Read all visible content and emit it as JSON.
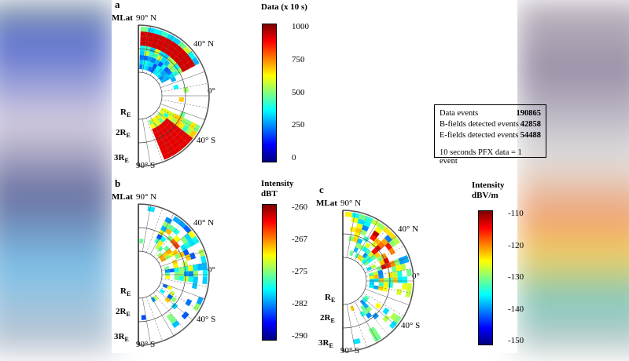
{
  "panels": [
    {
      "letter": "a",
      "mlat": "MLat",
      "n90": "90° N",
      "n40": "40° N",
      "eq": "0°",
      "s40": "40° S",
      "s90": "90° S",
      "re1": "R",
      "re2": "2R",
      "re3": "3R",
      "sub": "E",
      "colorbar": {
        "title": "Data (x 10 s)",
        "ticks": [
          "1000",
          "750",
          "500",
          "250",
          "0"
        ]
      }
    },
    {
      "letter": "b",
      "mlat": "MLat",
      "n90": "90° N",
      "n40": "40° N",
      "eq": "0°",
      "s40": "40° S",
      "s90": "90° S",
      "re1": "R",
      "re2": "2R",
      "re3": "3R",
      "sub": "E",
      "colorbar": {
        "title": "Intensity",
        "title2": "dBT",
        "ticks": [
          "-260",
          "-267",
          "-275",
          "-282",
          "-290"
        ]
      }
    },
    {
      "letter": "c",
      "mlat": "MLat",
      "n90": "90° N",
      "n40": "40° N",
      "eq": "0°",
      "s40": "40° S",
      "s90": "90° S",
      "re1": "R",
      "re2": "2R",
      "re3": "3R",
      "sub": "E",
      "colorbar": {
        "title": "Intensity",
        "title2": "dBV/m",
        "ticks": [
          "-110",
          "-120",
          "-130",
          "-140",
          "-150"
        ]
      }
    }
  ],
  "stats": {
    "rows": [
      {
        "label": "Data events",
        "value": "190865"
      },
      {
        "label": "B-fields detected events",
        "value": "42858"
      },
      {
        "label": "E-fields detected events",
        "value": "54488"
      }
    ],
    "note": "10 seconds PFX data = 1 event"
  },
  "chart_data": {
    "type": "heatmap",
    "projection": "polar (MLat vs radial distance in RE)",
    "colormap": "jet"
  }
}
